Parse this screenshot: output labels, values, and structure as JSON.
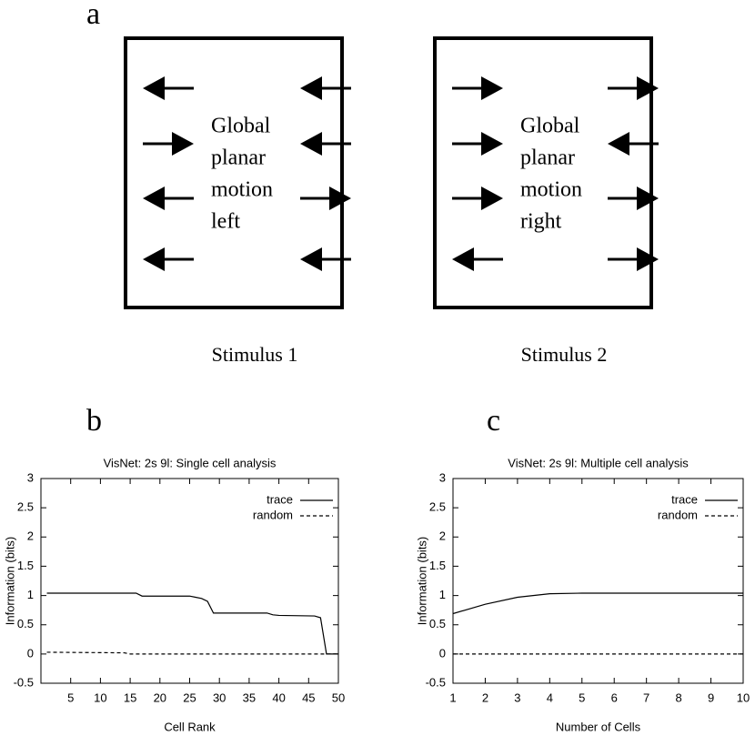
{
  "panel_labels": [
    "a",
    "b",
    "c"
  ],
  "stimuli": [
    {
      "text": [
        "Global",
        "planar",
        "motion",
        "left"
      ],
      "caption": "Stimulus 1"
    },
    {
      "text": [
        "Global",
        "planar",
        "motion",
        "right"
      ],
      "caption": "Stimulus 2"
    }
  ],
  "chart_data": [
    {
      "type": "line",
      "title": "VisNet: 2s 9l: Single cell analysis",
      "x_label": "Cell Rank",
      "y_label": "Information (bits)",
      "xlim": [
        0,
        50
      ],
      "xticks": [
        5,
        10,
        15,
        20,
        25,
        30,
        35,
        40,
        45,
        50
      ],
      "ylim": [
        -0.5,
        3
      ],
      "yticks": [
        -0.5,
        0,
        0.5,
        1,
        1.5,
        2,
        2.5,
        3
      ],
      "legend": "upper right",
      "series": [
        {
          "name": "trace",
          "color": "#000000",
          "dash": "solid",
          "x": [
            1,
            16,
            17,
            25,
            26,
            27,
            28,
            29,
            38,
            39,
            40,
            46,
            47,
            48,
            50
          ],
          "values": [
            1.04,
            1.04,
            0.99,
            0.99,
            0.97,
            0.95,
            0.9,
            0.7,
            0.7,
            0.67,
            0.66,
            0.65,
            0.62,
            0,
            0
          ]
        },
        {
          "name": "random",
          "color": "#000000",
          "dash": "dashed",
          "x": [
            1,
            14,
            15,
            50
          ],
          "values": [
            0.03,
            0.02,
            0,
            0
          ]
        }
      ]
    },
    {
      "type": "line",
      "title": "VisNet: 2s 9l: Multiple cell analysis",
      "x_label": "Number of Cells",
      "y_label": "Information (bits)",
      "xlim": [
        1,
        10
      ],
      "xticks": [
        1,
        2,
        3,
        4,
        5,
        6,
        7,
        8,
        9,
        10
      ],
      "ylim": [
        -0.5,
        3
      ],
      "yticks": [
        -0.5,
        0,
        0.5,
        1,
        1.5,
        2,
        2.5,
        3
      ],
      "legend": "upper right",
      "series": [
        {
          "name": "trace",
          "color": "#000000",
          "dash": "solid",
          "x": [
            1,
            2,
            3,
            4,
            5,
            6,
            7,
            8,
            9,
            10
          ],
          "values": [
            0.69,
            0.85,
            0.97,
            1.03,
            1.04,
            1.04,
            1.04,
            1.04,
            1.04,
            1.04
          ]
        },
        {
          "name": "random",
          "color": "#000000",
          "dash": "dashed",
          "x": [
            1,
            2,
            3,
            4,
            5,
            6,
            7,
            8,
            9,
            10
          ],
          "values": [
            0,
            0,
            0,
            0,
            0,
            0,
            0,
            0,
            0,
            0
          ]
        }
      ]
    }
  ]
}
